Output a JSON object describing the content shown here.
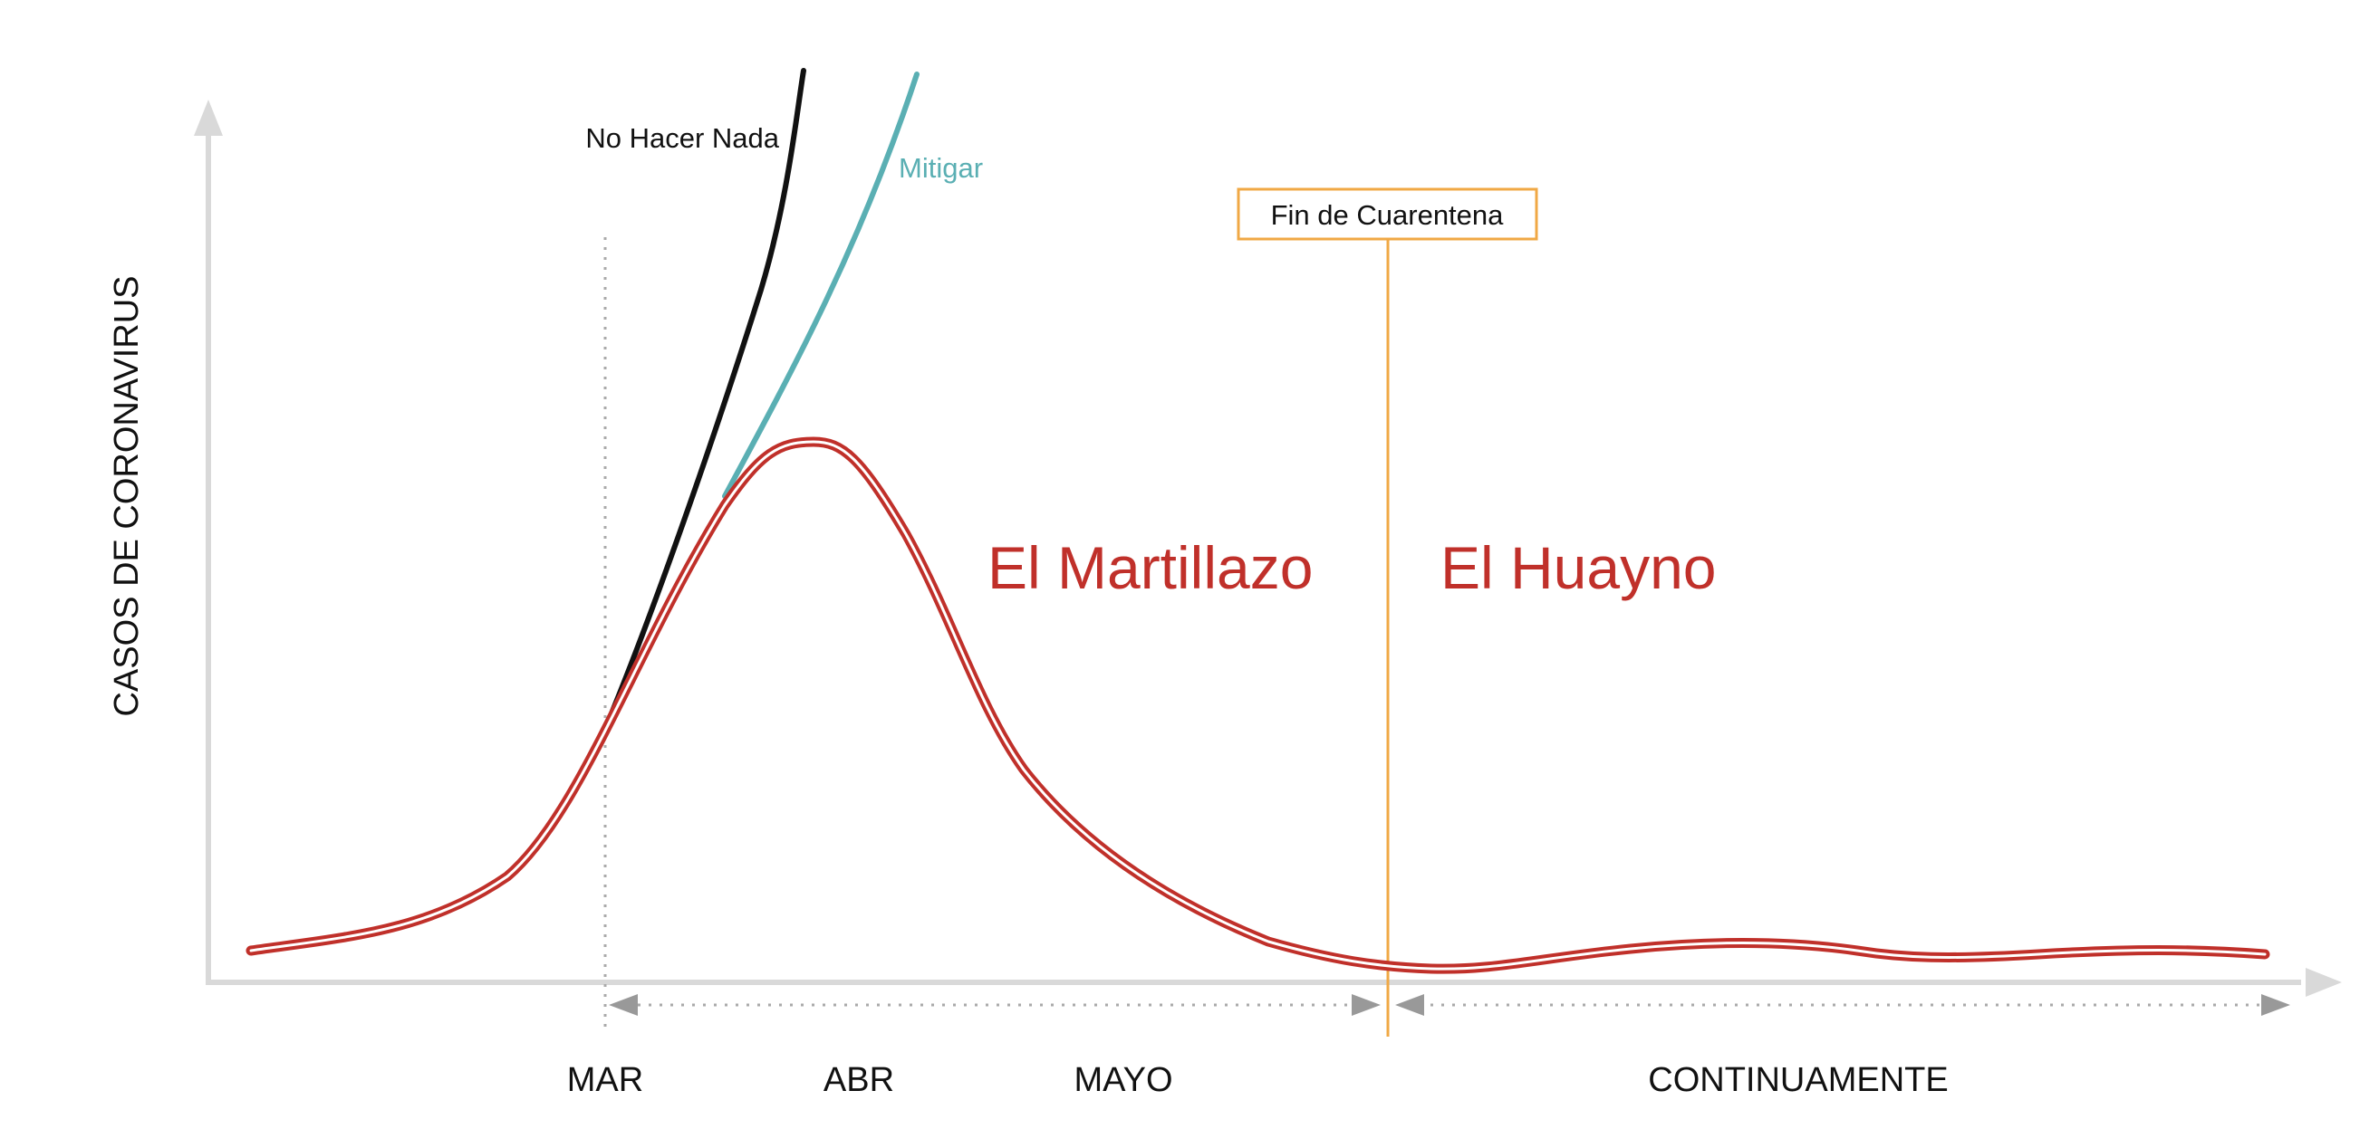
{
  "axis": {
    "y_label": "CASOS DE CORONAVIRUS"
  },
  "curves": {
    "no_hacer_nada": {
      "label": "No Hacer Nada",
      "color": "#111111"
    },
    "mitigar": {
      "label": "Mitigar",
      "color": "#5aafb3"
    },
    "suppression": {
      "color": "#c0302a"
    }
  },
  "quarantine": {
    "label": "Fin de Cuarentena",
    "color": "#f0a845"
  },
  "phases": {
    "hammer": "El Martillazo",
    "dance": "El Huayno",
    "color": "#c0302a"
  },
  "months": [
    "MAR",
    "ABR",
    "MAYO"
  ],
  "ongoing": "CONTINUAMENTE"
}
